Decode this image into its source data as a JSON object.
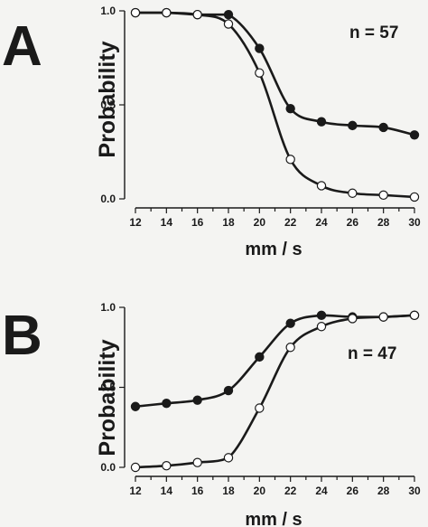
{
  "chart_data": [
    {
      "panel": "A",
      "type": "scatter",
      "xlabel": "mm / s",
      "ylabel": "Probability",
      "annotation": "n = 57",
      "xlim": [
        12,
        30
      ],
      "ylim": [
        0,
        1
      ],
      "xticks": [
        "12",
        "14",
        "16",
        "18",
        "20",
        "22",
        "24",
        "26",
        "28",
        "30"
      ],
      "yticks": [
        "0.0",
        "0.5",
        "1.0"
      ],
      "series": [
        {
          "marker": "filled",
          "x": [
            12,
            14,
            16,
            18,
            20,
            22,
            24,
            26,
            28,
            30
          ],
          "y": [
            0.99,
            0.99,
            0.98,
            0.98,
            0.8,
            0.48,
            0.41,
            0.39,
            0.38,
            0.34
          ]
        },
        {
          "marker": "open",
          "x": [
            12,
            14,
            16,
            18,
            20,
            22,
            24,
            26,
            28,
            30
          ],
          "y": [
            0.99,
            0.99,
            0.98,
            0.93,
            0.67,
            0.21,
            0.07,
            0.03,
            0.02,
            0.01
          ]
        }
      ]
    },
    {
      "panel": "B",
      "type": "scatter",
      "xlabel": "mm / s",
      "ylabel": "Probability",
      "annotation": "n = 47",
      "xlim": [
        12,
        30
      ],
      "ylim": [
        0,
        1
      ],
      "xticks": [
        "12",
        "14",
        "16",
        "18",
        "20",
        "22",
        "24",
        "26",
        "28",
        "30"
      ],
      "yticks": [
        "0.0",
        "0.5",
        "1.0"
      ],
      "series": [
        {
          "marker": "filled",
          "x": [
            12,
            14,
            16,
            18,
            20,
            22,
            24,
            26,
            28,
            30
          ],
          "y": [
            0.38,
            0.4,
            0.42,
            0.48,
            0.69,
            0.9,
            0.95,
            0.94,
            0.94,
            0.95
          ]
        },
        {
          "marker": "open",
          "x": [
            12,
            14,
            16,
            18,
            20,
            22,
            24,
            26,
            28,
            30
          ],
          "y": [
            0.0,
            0.01,
            0.03,
            0.06,
            0.37,
            0.75,
            0.88,
            0.93,
            0.94,
            0.95
          ]
        }
      ]
    }
  ]
}
